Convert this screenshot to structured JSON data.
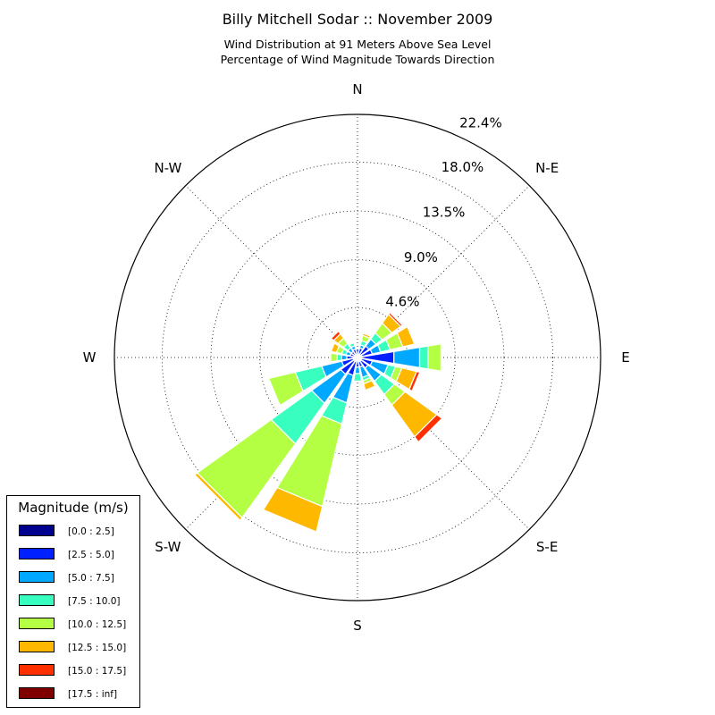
{
  "chart_data": {
    "type": "windrose",
    "title": "Billy Mitchell Sodar :: November 2009",
    "subtitle_lines": [
      "Wind Distribution at 91 Meters Above Sea Level",
      "Percentage of Wind Magnitude Towards Direction"
    ],
    "radial_ticks": [
      "4.6%",
      "9.0%",
      "13.5%",
      "18.0%",
      "22.4%"
    ],
    "radial_tick_values": [
      4.6,
      9.0,
      13.5,
      18.0,
      22.4
    ],
    "r_max": 22.4,
    "direction_labels": [
      {
        "label": "N",
        "angle": 0
      },
      {
        "label": "N-E",
        "angle": 45
      },
      {
        "label": "E",
        "angle": 90
      },
      {
        "label": "S-E",
        "angle": 135
      },
      {
        "label": "S",
        "angle": 180
      },
      {
        "label": "S-W",
        "angle": 225
      },
      {
        "label": "W",
        "angle": 270
      },
      {
        "label": "N-W",
        "angle": 315
      }
    ],
    "legend_title": "Magnitude (m/s)",
    "bins": [
      "[0.0 : 2.5]",
      "[2.5 : 5.0]",
      "[5.0 : 7.5]",
      "[7.5 : 10.0]",
      "[10.0 : 12.5]",
      "[12.5 : 15.0]",
      "[15.0 : 17.5]",
      "[17.5 : inf]"
    ],
    "bin_colors": [
      "#00008f",
      "#0020ff",
      "#00a8ff",
      "#38ffbf",
      "#b4ff44",
      "#ffb800",
      "#ff3000",
      "#800000"
    ],
    "sector_width_deg": 22.5,
    "sectors": [
      {
        "direction": 0,
        "values": [
          0.3,
          0.5,
          0.0,
          0.0,
          0.0,
          0.0,
          0.0,
          0.0
        ]
      },
      {
        "direction": 22.5,
        "values": [
          0.3,
          0.6,
          0.3,
          0.4,
          0.5,
          0.2,
          0.0,
          0.0
        ]
      },
      {
        "direction": 45,
        "values": [
          0.3,
          1.0,
          0.8,
          0.7,
          1.1,
          1.0,
          0.2,
          0.0
        ]
      },
      {
        "direction": 67.5,
        "values": [
          0.4,
          1.0,
          0.8,
          0.9,
          1.2,
          1.1,
          0.0,
          0.0
        ]
      },
      {
        "direction": 90,
        "values": [
          0.4,
          3.0,
          2.4,
          0.8,
          1.2,
          0.1,
          0.0,
          0.0
        ]
      },
      {
        "direction": 112.5,
        "values": [
          0.4,
          1.0,
          1.5,
          0.7,
          0.6,
          1.4,
          0.3,
          0.0
        ]
      },
      {
        "direction": 135,
        "values": [
          0.4,
          0.8,
          1.5,
          1.5,
          1.2,
          3.6,
          0.6,
          0.0
        ]
      },
      {
        "direction": 157.5,
        "values": [
          0.4,
          0.5,
          1.0,
          0.3,
          0.3,
          0.6,
          0.0,
          0.0
        ]
      },
      {
        "direction": 180,
        "values": [
          0.3,
          0.6,
          0.6,
          0.7,
          0.0,
          0.0,
          0.0,
          0.0
        ]
      },
      {
        "direction": 202.5,
        "values": [
          0.4,
          1.3,
          2.6,
          2.0,
          7.8,
          2.4,
          0.0,
          0.0
        ]
      },
      {
        "direction": 225,
        "values": [
          0.4,
          1.5,
          3.3,
          4.6,
          8.4,
          0.3,
          0.0,
          0.0
        ]
      },
      {
        "direction": 247.5,
        "values": [
          0.4,
          1.1,
          1.9,
          2.5,
          2.5,
          0.0,
          0.0,
          0.0
        ]
      },
      {
        "direction": 270,
        "values": [
          0.4,
          0.6,
          0.5,
          0.4,
          0.6,
          0.0,
          0.0,
          0.0
        ]
      },
      {
        "direction": 292.5,
        "values": [
          0.3,
          0.4,
          0.4,
          0.4,
          0.5,
          0.5,
          0.0,
          0.0
        ]
      },
      {
        "direction": 315,
        "values": [
          0.3,
          0.4,
          0.4,
          0.5,
          0.6,
          0.5,
          0.3,
          0.0
        ]
      },
      {
        "direction": 337.5,
        "values": [
          0.3,
          0.5,
          0.3,
          0.3,
          0.0,
          0.0,
          0.0,
          0.0
        ]
      }
    ]
  }
}
